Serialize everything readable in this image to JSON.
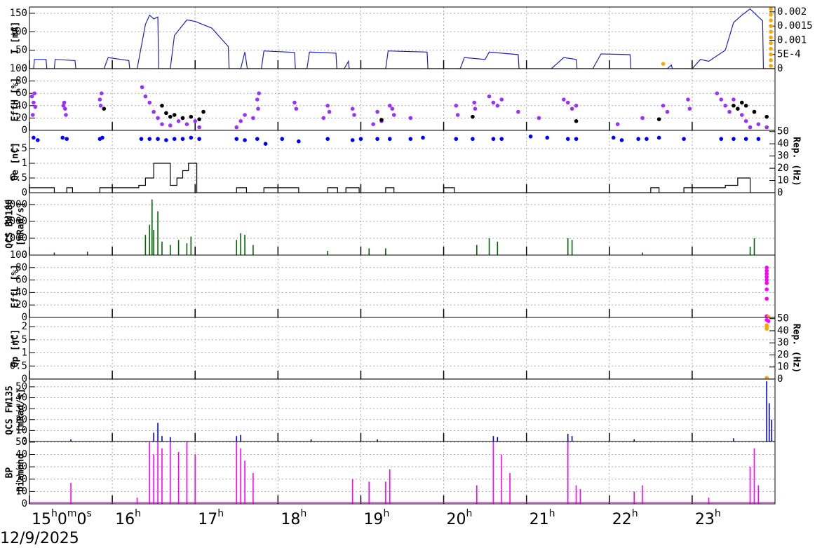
{
  "x_axis": {
    "xlim": [
      15,
      24
    ],
    "xticks": [
      {
        "value": 15,
        "label": "15h0m0s"
      },
      {
        "value": 16,
        "label": "16h"
      },
      {
        "value": 17,
        "label": "17h"
      },
      {
        "value": 18,
        "label": "18h"
      },
      {
        "value": 19,
        "label": "19h"
      },
      {
        "value": 20,
        "label": "20h"
      },
      {
        "value": 21,
        "label": "21h"
      },
      {
        "value": 22,
        "label": "22h"
      },
      {
        "value": 23,
        "label": "23h"
      }
    ],
    "date": "12/9/2025"
  },
  "chart_data": [
    {
      "type": "combo",
      "ylabel": [
        "I [mA]"
      ],
      "ylim": [
        0,
        167
      ],
      "yticks": [
        0,
        50,
        100,
        150
      ],
      "y2lim": [
        0,
        0.00217
      ],
      "y2ticks": [
        0,
        {
          "value": 0.0005,
          "label": "5E-4"
        },
        0.001,
        0.0015,
        0.002
      ],
      "grid": true,
      "series": [
        {
          "type": "line",
          "color": "#1f1fbf",
          "x": [
            15.0,
            15.05,
            15.06,
            15.2,
            15.21,
            15.3,
            15.31,
            15.55,
            15.56,
            15.9,
            15.95,
            16.2,
            16.21,
            16.3,
            16.4,
            16.45,
            16.5,
            16.55,
            16.56,
            16.7,
            16.75,
            16.9,
            17.0,
            17.2,
            17.4,
            17.41,
            17.55,
            17.6,
            17.63,
            17.8,
            17.83,
            18.2,
            18.21,
            18.35,
            18.38,
            18.7,
            18.71,
            18.8,
            18.85,
            18.86,
            19.3,
            19.33,
            19.8,
            19.81,
            20.2,
            20.25,
            20.5,
            20.55,
            20.9,
            20.91,
            21.3,
            21.45,
            21.6,
            21.61,
            21.8,
            21.9,
            22.25,
            22.26,
            22.7,
            22.75,
            22.76,
            23.0,
            23.1,
            23.2,
            23.4,
            23.5,
            23.6,
            23.7,
            23.8,
            23.85,
            23.86,
            23.99
          ],
          "values": [
            0,
            0,
            25,
            25,
            0,
            0,
            25,
            22,
            0,
            0,
            30,
            22,
            0,
            0,
            120,
            145,
            135,
            140,
            0,
            0,
            90,
            132,
            128,
            110,
            60,
            0,
            0,
            45,
            0,
            0,
            48,
            44,
            0,
            0,
            45,
            42,
            0,
            0,
            20,
            0,
            0,
            48,
            45,
            0,
            0,
            30,
            25,
            45,
            38,
            0,
            0,
            30,
            25,
            0,
            0,
            40,
            38,
            0,
            0,
            10,
            0,
            0,
            25,
            20,
            50,
            125,
            145,
            162,
            140,
            130,
            0,
            0
          ]
        },
        {
          "type": "line",
          "color": "#e00000",
          "axis": "y2",
          "x": [
            15,
            24
          ],
          "values": [
            0,
            0
          ]
        },
        {
          "type": "scatter",
          "color": "#ffa500",
          "axis": "y2",
          "x": [
            22.65,
            23.95,
            23.95,
            23.95,
            23.95,
            23.95,
            23.95,
            23.95,
            23.95,
            23.95,
            23.95,
            23.95
          ],
          "values": [
            0.00017,
            0.0021,
            0.0019,
            0.0017,
            0.0015,
            0.0013,
            0.0011,
            0.0009,
            0.0007,
            0.0005,
            0.0003,
            0.0001
          ]
        }
      ]
    },
    {
      "type": "combo",
      "ylabel": [
        "EffH [%]"
      ],
      "ylim": [
        0,
        100
      ],
      "yticks": [
        0,
        20,
        40,
        60,
        80,
        100
      ],
      "grid": true,
      "series": [
        {
          "type": "scatter",
          "color": "#9b30ff",
          "x": [
            15.03,
            15.05,
            15.07,
            15.04,
            15.06,
            15.42,
            15.43,
            15.44,
            15.41,
            15.85,
            15.87,
            15.86,
            16.36,
            16.4,
            16.45,
            16.5,
            16.55,
            16.6,
            16.7,
            16.8,
            16.9,
            17.0,
            17.05,
            17.5,
            17.55,
            17.6,
            17.7,
            17.75,
            17.77,
            17.76,
            18.2,
            18.22,
            18.55,
            18.6,
            18.62,
            18.9,
            18.92,
            19.15,
            19.2,
            19.25,
            19.35,
            19.4,
            19.38,
            19.6,
            20.15,
            20.17,
            20.37,
            20.38,
            20.55,
            20.6,
            20.65,
            20.7,
            20.9,
            21.15,
            21.45,
            21.5,
            21.55,
            21.6,
            22.1,
            22.4,
            22.65,
            22.7,
            22.95,
            22.97,
            23.3,
            23.35,
            23.4,
            23.45,
            23.5,
            23.6,
            23.65,
            23.7,
            23.75,
            23.8,
            23.9
          ],
          "values": [
            55,
            45,
            38,
            25,
            60,
            45,
            35,
            25,
            40,
            50,
            60,
            40,
            70,
            55,
            45,
            30,
            20,
            10,
            8,
            15,
            10,
            15,
            5,
            5,
            15,
            25,
            20,
            50,
            60,
            35,
            45,
            35,
            20,
            40,
            30,
            35,
            25,
            10,
            30,
            15,
            40,
            25,
            35,
            20,
            40,
            25,
            45,
            35,
            55,
            45,
            40,
            50,
            30,
            20,
            50,
            45,
            35,
            40,
            10,
            20,
            40,
            30,
            50,
            35,
            60,
            50,
            40,
            30,
            50,
            25,
            15,
            5,
            30,
            10,
            5
          ]
        },
        {
          "type": "scatter",
          "color": "#000000",
          "x": [
            15.9,
            16.6,
            16.65,
            16.7,
            16.75,
            16.85,
            16.95,
            17.05,
            17.1,
            19.25,
            20.35,
            21.6,
            22.6,
            23.5,
            23.55,
            23.6,
            23.65,
            23.75,
            23.9
          ],
          "values": [
            35,
            40,
            28,
            22,
            25,
            20,
            22,
            18,
            30,
            17,
            22,
            15,
            18,
            40,
            35,
            45,
            40,
            30,
            22
          ]
        }
      ]
    },
    {
      "type": "combo",
      "ylabel": [
        "Qe [nC]"
      ],
      "ylim": [
        0,
        2.12
      ],
      "yticks": [
        0,
        0.5,
        1,
        1.5
      ],
      "y2lim": [
        0,
        51
      ],
      "y2ticks": [
        0,
        10,
        20,
        30,
        40,
        50
      ],
      "y2label": "Rep. (Hz)",
      "grid": true,
      "series": [
        {
          "type": "line",
          "color": "#000000",
          "x": [
            15.0,
            15.3,
            15.3,
            15.45,
            15.45,
            15.52,
            15.52,
            15.85,
            15.85,
            16.32,
            16.32,
            16.4,
            16.4,
            16.5,
            16.5,
            16.7,
            16.7,
            16.78,
            16.78,
            16.85,
            16.85,
            16.92,
            16.92,
            17.02,
            17.02,
            17.5,
            17.5,
            17.62,
            17.62,
            17.83,
            17.83,
            18.25,
            18.25,
            18.6,
            18.6,
            18.72,
            18.72,
            18.82,
            18.82,
            18.98,
            18.98,
            19.3,
            19.3,
            19.4,
            19.4,
            20.0,
            20.0,
            20.13,
            20.13,
            22.5,
            22.5,
            22.6,
            22.6,
            22.9,
            22.9,
            23.4,
            23.4,
            23.55,
            23.55,
            23.7,
            23.7,
            23.99
          ],
          "values": [
            0.17,
            0.17,
            0,
            0,
            0.17,
            0.17,
            0,
            0,
            0.17,
            0.17,
            0.25,
            0.25,
            0.5,
            0.5,
            1,
            1,
            0.25,
            0.25,
            0.5,
            0.5,
            0.75,
            0.75,
            1,
            1,
            0,
            0,
            0.17,
            0.17,
            0,
            0,
            0.17,
            0.17,
            0,
            0,
            0.17,
            0.17,
            0,
            0,
            0.17,
            0.17,
            0,
            0,
            0.17,
            0.17,
            0,
            0,
            0.17,
            0.17,
            0,
            0,
            0.17,
            0.17,
            0,
            0,
            0.17,
            0.17,
            0.25,
            0.25,
            0.5,
            0.5,
            0,
            0
          ]
        },
        {
          "type": "scatter",
          "color": "#0000ff",
          "axis": "y2",
          "x": [
            15.05,
            15.1,
            15.4,
            15.45,
            15.85,
            15.88,
            16.35,
            16.45,
            16.55,
            16.65,
            16.75,
            16.85,
            16.95,
            17.05,
            17.5,
            17.6,
            17.75,
            17.85,
            18.05,
            18.25,
            18.6,
            18.9,
            19.0,
            19.2,
            19.35,
            19.6,
            19.75,
            20.15,
            20.35,
            20.6,
            20.7,
            21.05,
            21.25,
            21.5,
            21.6,
            22.05,
            22.15,
            22.35,
            22.45,
            22.6,
            22.9,
            23.35,
            23.5,
            23.65,
            23.8
          ],
          "values": [
            45,
            43,
            45,
            44,
            44,
            45,
            44,
            44,
            44,
            43,
            44,
            44,
            45,
            44,
            44,
            43,
            44,
            40,
            44,
            42,
            44,
            43,
            44,
            44,
            44,
            44,
            45,
            44,
            44,
            44,
            44,
            46,
            45,
            44,
            44,
            45,
            43,
            44,
            44,
            45,
            44,
            44,
            44,
            44,
            44
          ]
        }
      ]
    },
    {
      "type": "combo",
      "ylabel": [
        "QCS BW180",
        "[mRad/s]"
      ],
      "ylim": [
        0,
        3700
      ],
      "yticks": [
        0,
        1000,
        2000,
        3000
      ],
      "grid": true,
      "series": [
        {
          "type": "spikes",
          "color": "#006400",
          "x": [
            15.3,
            15.7,
            16.4,
            16.45,
            16.48,
            16.5,
            16.55,
            16.6,
            16.7,
            16.8,
            16.9,
            16.95,
            17.5,
            17.55,
            17.6,
            17.7,
            18.0,
            18.6,
            19.1,
            19.3,
            20.4,
            20.55,
            20.65,
            21.5,
            21.55,
            22.4,
            23.7,
            23.75
          ],
          "values": [
            150,
            200,
            1200,
            1800,
            3300,
            1500,
            2600,
            800,
            600,
            900,
            700,
            1100,
            900,
            1300,
            1200,
            600,
            150,
            250,
            400,
            400,
            600,
            1000,
            800,
            1000,
            900,
            150,
            500,
            1000
          ]
        }
      ]
    },
    {
      "type": "combo",
      "ylabel": [
        "EffL [%]"
      ],
      "ylim": [
        0,
        100
      ],
      "yticks": [
        0,
        20,
        40,
        60,
        80,
        100
      ],
      "grid": true,
      "series": [
        {
          "type": "scatter",
          "color": "#ff00ff",
          "x": [
            23.9,
            23.9,
            23.9,
            23.9,
            23.9,
            23.9,
            23.9,
            23.9,
            23.9,
            23.9
          ],
          "values": [
            80,
            75,
            70,
            65,
            60,
            55,
            45,
            30,
            2,
            1
          ]
        },
        {
          "type": "scatter",
          "color": "#ffa500",
          "x": [
            23.92
          ],
          "values": [
            0.5
          ]
        }
      ]
    },
    {
      "type": "combo",
      "ylabel": [
        "Qp [nC]"
      ],
      "ylim": [
        0,
        2.35
      ],
      "yticks": [
        0,
        0.5,
        1,
        1.5,
        2
      ],
      "y2lim": [
        0,
        51
      ],
      "y2ticks": [
        0,
        10,
        20,
        30,
        40,
        50
      ],
      "y2label": "Rep. (Hz)",
      "grid": true,
      "series": [
        {
          "type": "line",
          "color": "#000000",
          "x": [
            15,
            24
          ],
          "values": [
            0,
            0
          ]
        },
        {
          "type": "scatter",
          "color": "#ffa500",
          "x": [
            23.9,
            23.9,
            23.9,
            23.9
          ],
          "values": [
            2.05,
            1.98,
            1.92,
            0.05
          ]
        },
        {
          "type": "scatter",
          "color": "#ff00ff",
          "axis": "y2",
          "x": [
            23.9,
            23.92
          ],
          "values": [
            49,
            48
          ]
        }
      ]
    },
    {
      "type": "combo",
      "ylabel": [
        "QCS FW135",
        "[mRad/s]"
      ],
      "ylim": [
        0,
        57
      ],
      "yticks": [
        0,
        10,
        20,
        30,
        40,
        50
      ],
      "grid": true,
      "series": [
        {
          "type": "spikes",
          "color": "#0000cc",
          "x": [
            15.5,
            16.5,
            16.55,
            16.6,
            16.7,
            17.5,
            17.55,
            18.4,
            19.2,
            20.6,
            20.65,
            21.5,
            21.55,
            22.3,
            23.5,
            23.9,
            23.93,
            23.96
          ],
          "values": [
            2,
            8,
            17,
            5,
            4,
            5,
            6,
            2,
            2,
            5,
            4,
            7,
            5,
            2,
            3,
            55,
            35,
            20
          ]
        }
      ]
    },
    {
      "type": "combo",
      "ylabel": [
        "BP",
        "Diamond"
      ],
      "ylim": [
        0,
        50.5
      ],
      "yticks": [
        0,
        10,
        20,
        30,
        40,
        50
      ],
      "grid": true,
      "series": [
        {
          "type": "line",
          "color": "#ff00ff",
          "x": [
            15,
            24
          ],
          "values": [
            1,
            1
          ]
        },
        {
          "type": "spikes",
          "color": "#ff00ff",
          "x": [
            15.5,
            16.3,
            16.45,
            16.5,
            16.55,
            16.6,
            16.7,
            16.8,
            16.9,
            17.0,
            17.5,
            17.55,
            17.6,
            17.7,
            18.9,
            19.1,
            19.3,
            19.35,
            20.4,
            20.6,
            20.7,
            20.8,
            21.5,
            21.6,
            21.65,
            22.3,
            22.4,
            23.2,
            23.7,
            23.75,
            23.8
          ],
          "values": [
            17,
            5,
            50,
            40,
            50,
            45,
            50,
            42,
            50,
            40,
            50,
            45,
            35,
            25,
            20,
            18,
            18,
            28,
            15,
            50,
            40,
            25,
            50,
            15,
            12,
            10,
            15,
            5,
            30,
            45,
            15
          ]
        }
      ]
    }
  ]
}
